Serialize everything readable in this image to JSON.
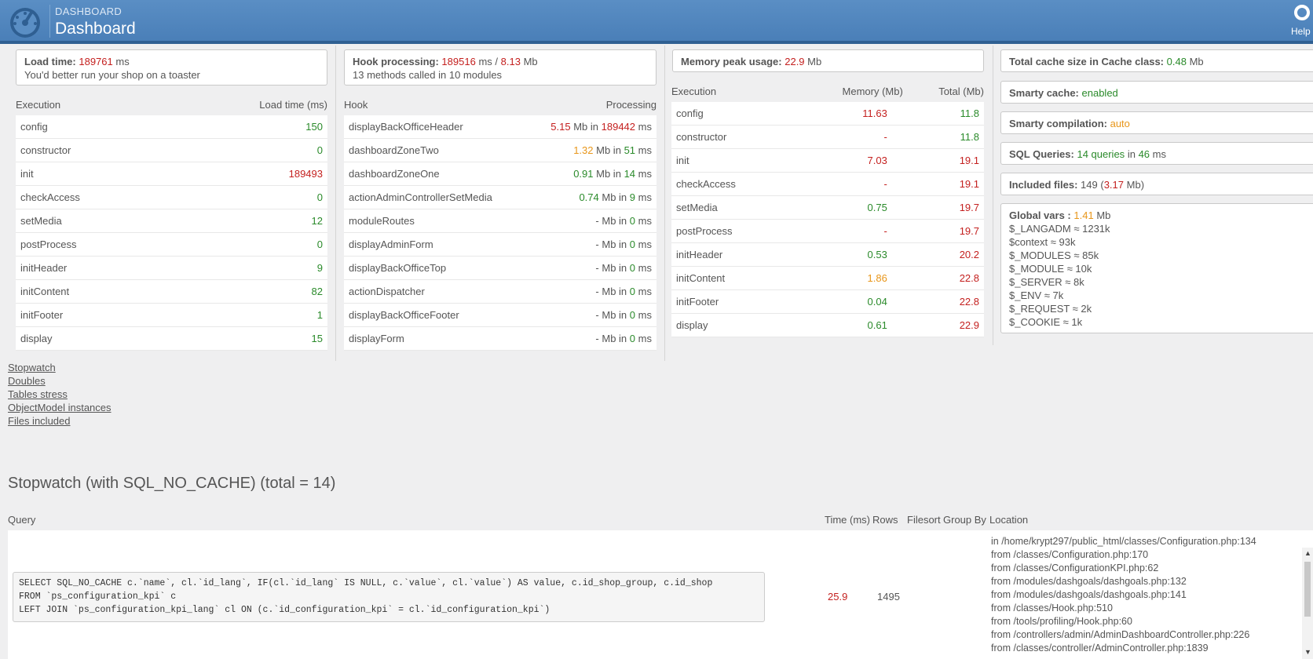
{
  "header": {
    "breadcrumb": "DASHBOARD",
    "title": "Dashboard",
    "help_label": "Help"
  },
  "summary": {
    "load_time": {
      "label": "Load time:",
      "value": "189761",
      "unit": "ms",
      "note": "You'd better run your shop on a toaster"
    },
    "hook_processing": {
      "label": "Hook processing:",
      "ms": "189516",
      "sep": "ms /",
      "mb": "8.13",
      "mb_unit": "Mb",
      "note": "13 methods called in 10 modules"
    },
    "memory_peak": {
      "label": "Memory peak usage:",
      "value": "22.9",
      "unit": "Mb"
    },
    "cache": {
      "total": {
        "label": "Total cache size in Cache class:",
        "value": "0.48",
        "unit": "Mb"
      },
      "smarty_cache": {
        "label": "Smarty cache:",
        "value": "enabled"
      },
      "smarty_compilation": {
        "label": "Smarty compilation:",
        "value": "auto"
      },
      "sql_queries": {
        "label": "SQL Queries:",
        "count": "14 queries",
        "in": "in",
        "ms": "46",
        "unit": "ms"
      },
      "included_files": {
        "label": "Included files:",
        "count": "149",
        "open": "(",
        "mb": "3.17",
        "close": "Mb)"
      },
      "global_vars": {
        "label": "Global vars :",
        "value": "1.41",
        "unit": "Mb",
        "items": [
          "$_LANGADM ≈ 1231k",
          "$context ≈ 93k",
          "$_MODULES ≈ 85k",
          "$_MODULE ≈ 10k",
          "$_SERVER ≈ 8k",
          "$_ENV ≈ 7k",
          "$_REQUEST ≈ 2k",
          "$_COOKIE ≈ 1k"
        ]
      }
    }
  },
  "execution_time": {
    "headers": [
      "Execution",
      "Load time (ms)"
    ],
    "rows": [
      {
        "name": "config",
        "value": "150",
        "color": "green"
      },
      {
        "name": "constructor",
        "value": "0",
        "color": "green"
      },
      {
        "name": "init",
        "value": "189493",
        "color": "red"
      },
      {
        "name": "checkAccess",
        "value": "0",
        "color": "green"
      },
      {
        "name": "setMedia",
        "value": "12",
        "color": "green"
      },
      {
        "name": "postProcess",
        "value": "0",
        "color": "green"
      },
      {
        "name": "initHeader",
        "value": "9",
        "color": "green"
      },
      {
        "name": "initContent",
        "value": "82",
        "color": "green"
      },
      {
        "name": "initFooter",
        "value": "1",
        "color": "green"
      },
      {
        "name": "display",
        "value": "15",
        "color": "green"
      }
    ]
  },
  "hooks": {
    "headers": [
      "Hook",
      "Processing"
    ],
    "rows": [
      {
        "name": "displayBackOfficeHeader",
        "mb": "5.15",
        "mb_color": "red",
        "ms": "189442",
        "ms_color": "red"
      },
      {
        "name": "dashboardZoneTwo",
        "mb": "1.32",
        "mb_color": "orange",
        "ms": "51",
        "ms_color": "green"
      },
      {
        "name": "dashboardZoneOne",
        "mb": "0.91",
        "mb_color": "green",
        "ms": "14",
        "ms_color": "green"
      },
      {
        "name": "actionAdminControllerSetMedia",
        "mb": "0.74",
        "mb_color": "green",
        "ms": "9",
        "ms_color": "green"
      },
      {
        "name": "moduleRoutes",
        "mb": "-",
        "mb_color": "",
        "ms": "0",
        "ms_color": "green"
      },
      {
        "name": "displayAdminForm",
        "mb": "-",
        "mb_color": "",
        "ms": "0",
        "ms_color": "green"
      },
      {
        "name": "displayBackOfficeTop",
        "mb": "-",
        "mb_color": "",
        "ms": "0",
        "ms_color": "green"
      },
      {
        "name": "actionDispatcher",
        "mb": "-",
        "mb_color": "",
        "ms": "0",
        "ms_color": "green"
      },
      {
        "name": "displayBackOfficeFooter",
        "mb": "-",
        "mb_color": "",
        "ms": "0",
        "ms_color": "green"
      },
      {
        "name": "displayForm",
        "mb": "-",
        "mb_color": "",
        "ms": "0",
        "ms_color": "green"
      }
    ],
    "mb_word": "Mb in",
    "ms_word": "ms"
  },
  "execution_memory": {
    "headers": [
      "Execution",
      "Memory (Mb)",
      "Total (Mb)"
    ],
    "rows": [
      {
        "name": "config",
        "mem": "11.63",
        "mem_color": "red",
        "total": "11.8",
        "total_color": "green"
      },
      {
        "name": "constructor",
        "mem": "-",
        "mem_color": "red",
        "total": "11.8",
        "total_color": "green"
      },
      {
        "name": "init",
        "mem": "7.03",
        "mem_color": "red",
        "total": "19.1",
        "total_color": "red"
      },
      {
        "name": "checkAccess",
        "mem": "-",
        "mem_color": "red",
        "total": "19.1",
        "total_color": "red"
      },
      {
        "name": "setMedia",
        "mem": "0.75",
        "mem_color": "green",
        "total": "19.7",
        "total_color": "red"
      },
      {
        "name": "postProcess",
        "mem": "-",
        "mem_color": "red",
        "total": "19.7",
        "total_color": "red"
      },
      {
        "name": "initHeader",
        "mem": "0.53",
        "mem_color": "green",
        "total": "20.2",
        "total_color": "red"
      },
      {
        "name": "initContent",
        "mem": "1.86",
        "mem_color": "orange",
        "total": "22.8",
        "total_color": "red"
      },
      {
        "name": "initFooter",
        "mem": "0.04",
        "mem_color": "green",
        "total": "22.8",
        "total_color": "red"
      },
      {
        "name": "display",
        "mem": "0.61",
        "mem_color": "green",
        "total": "22.9",
        "total_color": "red"
      }
    ]
  },
  "links": [
    "Stopwatch",
    "Doubles",
    "Tables stress",
    "ObjectModel instances",
    "Files included"
  ],
  "stopwatch": {
    "title": "Stopwatch (with SQL_NO_CACHE) (total = 14)",
    "headers": {
      "query": "Query",
      "time": "Time (ms)",
      "rows": "Rows",
      "filesort": "Filesort",
      "groupby": "Group By",
      "location": "Location"
    },
    "entry": {
      "query": "SELECT SQL_NO_CACHE c.`name`, cl.`id_lang`, IF(cl.`id_lang` IS NULL, c.`value`, cl.`value`) AS value, c.id_shop_group, c.id_shop\nFROM `ps_configuration_kpi` c\nLEFT JOIN `ps_configuration_kpi_lang` cl ON (c.`id_configuration_kpi` = cl.`id_configuration_kpi`)",
      "time": "25.9",
      "rows": "1495",
      "location": "in /home/krypt297/public_html/classes/Configuration.php:134\nfrom /classes/Configuration.php:170\nfrom /classes/ConfigurationKPI.php:62\nfrom /modules/dashgoals/dashgoals.php:132\nfrom /modules/dashgoals/dashgoals.php:141\nfrom /classes/Hook.php:510\nfrom /tools/profiling/Hook.php:60\nfrom /controllers/admin/AdminDashboardController.php:226\nfrom /classes/controller/AdminController.php:1839"
    }
  }
}
